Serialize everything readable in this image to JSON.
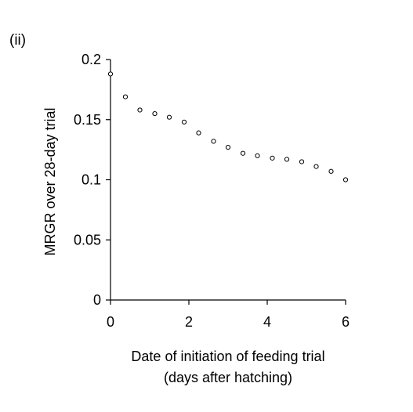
{
  "chart_data": {
    "type": "scatter",
    "panel_label": "(ii)",
    "xlabel_line1": "Date of initiation of feeding trial",
    "xlabel_line2": "(days after hatching)",
    "ylabel": "MRGR over 28-day trial",
    "xlim": [
      0,
      6
    ],
    "ylim": [
      0,
      0.2
    ],
    "x_ticks": [
      {
        "value": 0,
        "label": "0"
      },
      {
        "value": 2,
        "label": "2"
      },
      {
        "value": 4,
        "label": "4"
      },
      {
        "value": 6,
        "label": "6"
      }
    ],
    "y_ticks": [
      {
        "value": 0,
        "label": "0"
      },
      {
        "value": 0.05,
        "label": "0.05"
      },
      {
        "value": 0.1,
        "label": "0.1"
      },
      {
        "value": 0.15,
        "label": "0.15"
      },
      {
        "value": 0.2,
        "label": "0.2"
      }
    ],
    "grid": false,
    "legend": false,
    "marker_color": "#000000",
    "points": [
      {
        "x": 0.0,
        "y": 0.188
      },
      {
        "x": 0.38,
        "y": 0.169
      },
      {
        "x": 0.75,
        "y": 0.158
      },
      {
        "x": 1.13,
        "y": 0.155
      },
      {
        "x": 1.5,
        "y": 0.152
      },
      {
        "x": 1.88,
        "y": 0.148
      },
      {
        "x": 2.25,
        "y": 0.139
      },
      {
        "x": 2.63,
        "y": 0.132
      },
      {
        "x": 3.0,
        "y": 0.127
      },
      {
        "x": 3.38,
        "y": 0.122
      },
      {
        "x": 3.75,
        "y": 0.12
      },
      {
        "x": 4.13,
        "y": 0.118
      },
      {
        "x": 4.5,
        "y": 0.117
      },
      {
        "x": 4.88,
        "y": 0.115
      },
      {
        "x": 5.25,
        "y": 0.111
      },
      {
        "x": 5.63,
        "y": 0.107
      },
      {
        "x": 6.0,
        "y": 0.1
      }
    ]
  }
}
